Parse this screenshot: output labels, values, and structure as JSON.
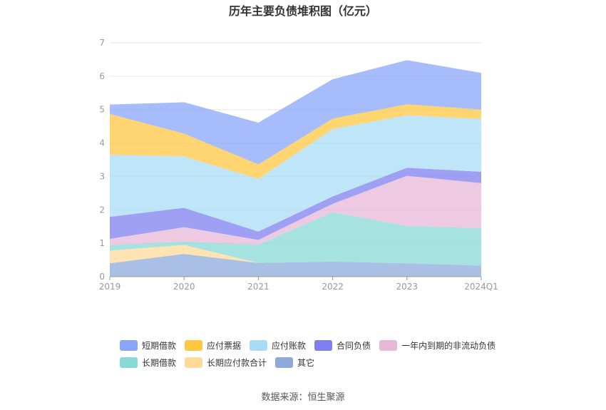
{
  "chart_data": {
    "type": "area",
    "title": "历年主要负债堆积图（亿元）",
    "stacked": true,
    "categories": [
      "2019",
      "2020",
      "2021",
      "2022",
      "2023",
      "2024Q1"
    ],
    "yticks": [
      "0",
      "1",
      "2",
      "3",
      "4",
      "5",
      "6",
      "7"
    ],
    "ylim": [
      0,
      7
    ],
    "grid": true,
    "legend_position": "bottom",
    "series": [
      {
        "name": "其它",
        "color": "#8eaadb",
        "values": [
          0.4,
          0.68,
          0.41,
          0.45,
          0.4,
          0.33
        ]
      },
      {
        "name": "长期应付款合计",
        "color": "#ffd99a",
        "values": [
          0.38,
          0.27,
          0.0,
          0.0,
          0.0,
          0.0
        ]
      },
      {
        "name": "长期借款",
        "color": "#88d8d4",
        "values": [
          0.17,
          0.1,
          0.55,
          1.48,
          1.12,
          1.12
        ]
      },
      {
        "name": "一年内到期的非流动负债",
        "color": "#e8b8d8",
        "values": [
          0.18,
          0.43,
          0.14,
          0.25,
          1.5,
          1.35
        ]
      },
      {
        "name": "合同负债",
        "color": "#7f80f0",
        "values": [
          0.66,
          0.58,
          0.25,
          0.22,
          0.24,
          0.34
        ]
      },
      {
        "name": "应付账款",
        "color": "#a8dcf6",
        "values": [
          1.86,
          1.54,
          1.58,
          2.02,
          1.57,
          1.58
        ]
      },
      {
        "name": "应付票据",
        "color": "#ffc742",
        "values": [
          1.22,
          0.68,
          0.43,
          0.31,
          0.33,
          0.28
        ]
      },
      {
        "name": "短期借款",
        "color": "#8aa5f8",
        "values": [
          0.28,
          0.94,
          1.25,
          1.18,
          1.32,
          1.1
        ]
      }
    ]
  },
  "legend": {
    "row1": [
      {
        "name": "短期借款",
        "color": "#8aa5f8"
      },
      {
        "name": "应付票据",
        "color": "#ffc742"
      },
      {
        "name": "应付账款",
        "color": "#a8dcf6"
      },
      {
        "name": "合同负债",
        "color": "#7f80f0"
      },
      {
        "name": "一年内到期的非流动负债",
        "color": "#e8b8d8"
      }
    ],
    "row2": [
      {
        "name": "长期借款",
        "color": "#88d8d4"
      },
      {
        "name": "长期应付款合计",
        "color": "#ffd99a"
      },
      {
        "name": "其它",
        "color": "#8eaadb"
      }
    ]
  },
  "source": "数据来源：恒生聚源"
}
